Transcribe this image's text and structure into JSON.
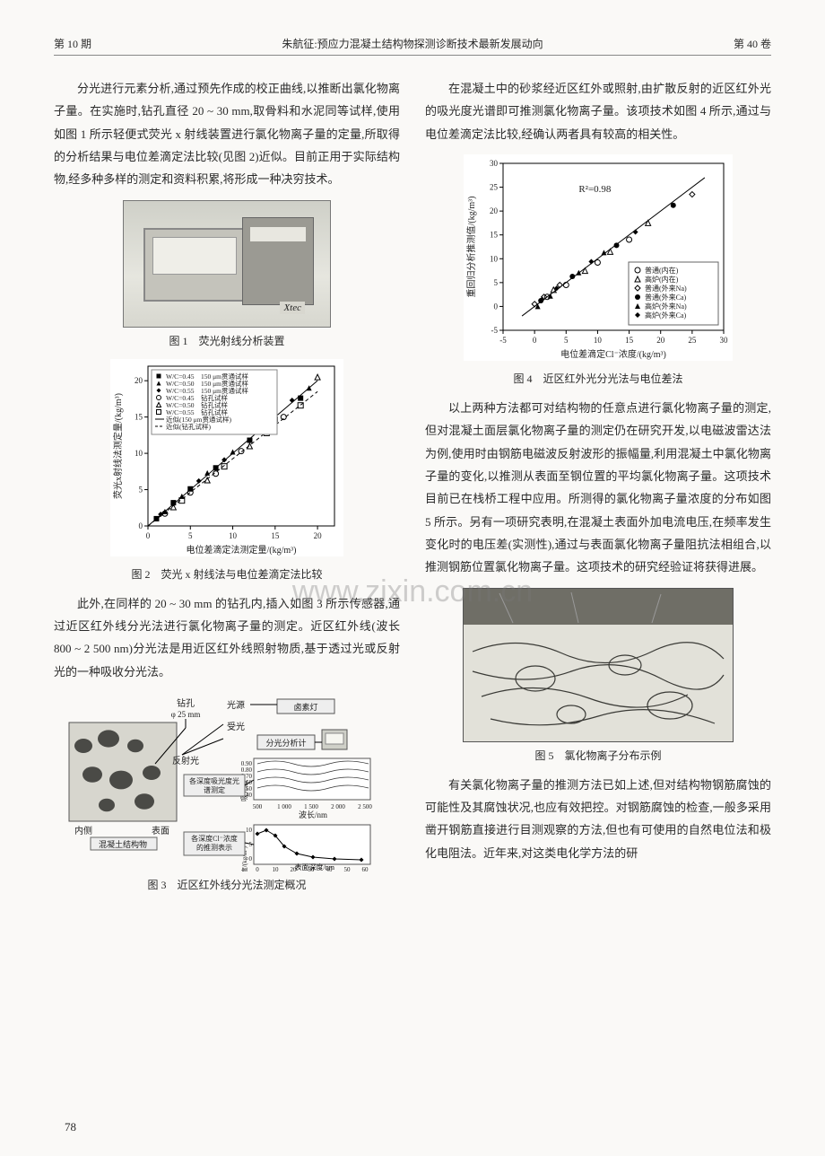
{
  "header": {
    "issue": "第 10 期",
    "running_head": "朱航征:预应力混凝土结构物探测诊断技术最新发展动向",
    "volume": "第 40 卷"
  },
  "watermark": "www.zixin.com.cn",
  "page_number": "78",
  "col1": {
    "p1": "分光进行元素分析,通过预先作成的校正曲线,以推断出氯化物离子量。在实施时,钻孔直径 20 ~ 30 mm,取骨料和水泥同等试样,使用如图 1 所示轻便式荧光 x 射线装置进行氯化物离子量的定量,所取得的分析结果与电位差滴定法比较(见图 2)近似。目前正用于实际结构物,经多种多样的测定和资料积累,将形成一种决穷技术。",
    "fig1_brand": "Xtec",
    "fig1_caption": "图 1　荧光射线分析装置",
    "chart2": {
      "type": "scatter",
      "xlabel": "电位差滴定法测定量/(kg/m³)",
      "ylabel": "荧光x射线法测定量/(kg/m³)",
      "xlim": [
        0,
        22
      ],
      "ylim": [
        0,
        22
      ],
      "xticks": [
        0,
        5,
        10,
        15,
        20
      ],
      "yticks": [
        0,
        5,
        10,
        15,
        20
      ],
      "series": [
        {
          "label": "W/C=0.45　150 μm贯通试样",
          "marker": "square_filled",
          "color": "#000",
          "pts": [
            [
              1,
              1
            ],
            [
              3,
              3.2
            ],
            [
              5,
              5.1
            ],
            [
              8,
              8
            ],
            [
              12,
              11.8
            ],
            [
              15,
              14.7
            ],
            [
              18,
              17.6
            ]
          ]
        },
        {
          "label": "W/C=0.50　150 μm贯通试样",
          "marker": "triangle_filled",
          "color": "#000",
          "pts": [
            [
              2,
              2
            ],
            [
              4,
              4.1
            ],
            [
              7,
              7.3
            ],
            [
              10,
              10.2
            ],
            [
              14,
              14.1
            ],
            [
              19,
              19.0
            ]
          ]
        },
        {
          "label": "W/C=0.55　150 μm贯通试样",
          "marker": "diamond_filled",
          "color": "#000",
          "pts": [
            [
              1.5,
              1.6
            ],
            [
              6,
              6.2
            ],
            [
              9,
              9.1
            ],
            [
              13,
              13.2
            ],
            [
              17,
              17.3
            ]
          ]
        },
        {
          "label": "W/C=0.45　钻孔试样",
          "marker": "circle_open",
          "color": "#000",
          "pts": [
            [
              2,
              1.7
            ],
            [
              5,
              4.6
            ],
            [
              8,
              7.2
            ],
            [
              11,
              10.3
            ],
            [
              16,
              15.0
            ]
          ]
        },
        {
          "label": "W/C=0.50　钻孔试样",
          "marker": "triangle_open",
          "color": "#000",
          "pts": [
            [
              3,
              2.6
            ],
            [
              7,
              6.3
            ],
            [
              12,
              11.0
            ],
            [
              20,
              20.5
            ]
          ]
        },
        {
          "label": "W/C=0.55　钻孔试样",
          "marker": "square_open",
          "color": "#000",
          "pts": [
            [
              4,
              3.5
            ],
            [
              9,
              8.2
            ],
            [
              14,
              12.8
            ],
            [
              18,
              16.6
            ]
          ]
        }
      ],
      "fitlines": [
        {
          "label": "近似(150 μm贯通试样)",
          "dash": "solid",
          "color": "#000",
          "from": [
            0,
            0
          ],
          "to": [
            20,
            20
          ]
        },
        {
          "label": "近似(钻孔试样)",
          "dash": "dash",
          "color": "#000",
          "from": [
            0,
            0
          ],
          "to": [
            20,
            18.5
          ]
        }
      ],
      "legend_pos": "top-left",
      "background": "#ffffff"
    },
    "fig2_caption": "图 2　荧光 x 射线法与电位差滴定法比较",
    "p2": "此外,在同样的 20 ~ 30 mm 的钻孔内,插入如图 3 所示传感器,通过近区红外线分光法进行氯化物离子量的测定。近区红外线(波长 800 ~ 2 500 nm)分光法是用近区红外线照射物质,基于透过光或反射光的一种吸收分光法。",
    "fig3_labels": {
      "drill": "钻孔",
      "phi": "φ 25 mm",
      "light_src": "光源",
      "halogen": "卤素灯",
      "recv": "受光",
      "analyzer": "分光分析计",
      "reflect": "反射光",
      "inside": "内侧",
      "surface": "表面",
      "structure": "混凝土结构物",
      "depth_spec": "各深度吸光度光谱测定",
      "abs_axis": "吸光度",
      "abs_ticks": [
        "0.90",
        "0.80",
        "0.70",
        "0.60",
        "0.50",
        "0.40"
      ],
      "wl_ticks": [
        "500",
        "1 000",
        "1 500",
        "2 000",
        "2 500"
      ],
      "wl_axis": "波长/nm",
      "depth_cl": "各深度Cl⁻浓度的推测表示",
      "cl_axis": "Cl⁻浓度/(kg/m³)",
      "cl_yticks": [
        "0",
        "5",
        "10"
      ],
      "depth_axis": "表面深度/nm",
      "depth_ticks": [
        "0",
        "10",
        "20",
        "30",
        "40",
        "50",
        "60"
      ]
    },
    "fig3_caption": "图 3　近区红外线分光法测定概况"
  },
  "col2": {
    "p1": "在混凝土中的砂浆经近区红外或照射,由扩散反射的近区红外光的吸光度光谱即可推测氯化物离子量。该项技术如图 4 所示,通过与电位差滴定法比较,经确认两者具有较高的相关性。",
    "chart4": {
      "type": "scatter",
      "xlabel": "电位差滴定Cl⁻浓度/(kg/m³)",
      "ylabel": "重回归分析推测值/(kg/m³)",
      "r2_label": "R²=0.98",
      "xlim": [
        -5,
        30
      ],
      "ylim": [
        -5,
        30
      ],
      "xticks": [
        -5,
        0,
        5,
        10,
        15,
        20,
        25,
        30
      ],
      "yticks": [
        -5,
        0,
        5,
        10,
        15,
        20,
        25,
        30
      ],
      "series": [
        {
          "label": "普通(内在)",
          "marker": "circle_open",
          "color": "#000",
          "pts": [
            [
              2,
              2
            ],
            [
              5,
              4.5
            ],
            [
              10,
              9.2
            ],
            [
              15,
              14
            ]
          ]
        },
        {
          "label": "高炉(内在)",
          "marker": "triangle_open",
          "color": "#000",
          "pts": [
            [
              3,
              3.5
            ],
            [
              8,
              7.5
            ],
            [
              12,
              11.5
            ],
            [
              18,
              17.5
            ]
          ]
        },
        {
          "label": "普通(外来Na)",
          "marker": "diamond_open",
          "color": "#000",
          "pts": [
            [
              0,
              0.5
            ],
            [
              1.5,
              2
            ],
            [
              4,
              4.5
            ],
            [
              25,
              23.5
            ]
          ]
        },
        {
          "label": "普通(外来Ca)",
          "marker": "circle_filled",
          "color": "#000",
          "pts": [
            [
              1,
              1.2
            ],
            [
              6,
              6.3
            ],
            [
              13,
              12.8
            ],
            [
              22,
              21.2
            ]
          ]
        },
        {
          "label": "高炉(外来Na)",
          "marker": "triangle_filled",
          "color": "#000",
          "pts": [
            [
              0.5,
              0
            ],
            [
              2.5,
              2.2
            ],
            [
              7,
              7.1
            ],
            [
              11,
              11.3
            ]
          ]
        },
        {
          "label": "高炉(外来Ca)",
          "marker": "diamond_filled",
          "color": "#000",
          "pts": [
            [
              1.2,
              1.5
            ],
            [
              3.5,
              3.8
            ],
            [
              9,
              9.4
            ],
            [
              16,
              15.6
            ]
          ]
        }
      ],
      "fitline": {
        "from": [
          -2,
          -2
        ],
        "to": [
          27,
          27
        ],
        "color": "#000"
      },
      "legend_pos": "bottom-right",
      "background": "#ffffff"
    },
    "fig4_caption": "图 4　近区红外光分光法与电位差法",
    "p2": "以上两种方法都可对结构物的任意点进行氯化物离子量的测定,但对混凝土面层氯化物离子量的测定仍在研究开发,以电磁波雷达法为例,使用时由钢筋电磁波反射波形的振幅量,利用混凝土中氯化物离子量的变化,以推测从表面至钢位置的平均氯化物离子量。这项技术目前已在栈桥工程中应用。所测得的氯化物离子量浓度的分布如图 5 所示。另有一项研究表明,在混凝土表面外加电流电压,在频率发生变化时的电压差(实测性),通过与表面氯化物离子量阻抗法相组合,以推测钢筋位置氯化物离子量。这项技术的研究经验证将获得进展。",
    "fig5_caption": "图 5　氯化物离子分布示例",
    "p3": "有关氯化物离子量的推测方法已如上述,但对结构物钢筋腐蚀的可能性及其腐蚀状况,也应有效把控。对钢筋腐蚀的检查,一般多采用凿开钢筋直接进行目测观察的方法,但也有可使用的自然电位法和极化电阻法。近年来,对这类电化学方法的研"
  }
}
